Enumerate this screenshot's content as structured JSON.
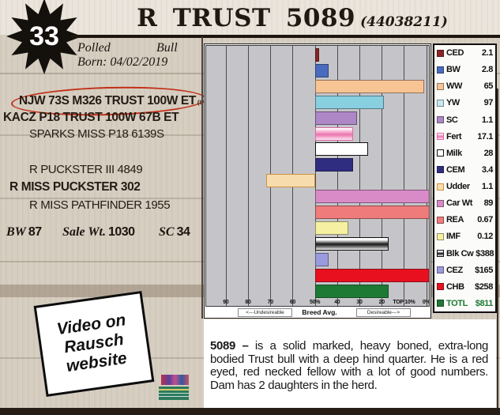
{
  "page": {
    "lot_number": "33",
    "title": "R TRUST 5089",
    "registration": "(44038211)",
    "polled_label": "Polled",
    "sex_label": "Bull",
    "born_label": "Born: 04/02/2019",
    "video_note": "Video on Rausch website",
    "description_lead": "5089 –",
    "description_body": " is a solid marked, heavy boned, extra-long bodied Trust bull with a deep hind quarter. He is a red eyed, red necked fellow with a lot of good numbers. Dam has 2 daughters in the herd."
  },
  "pedigree": {
    "sire_sire": "NJW 73S M326 TRUST 100W ET",
    "sire_sire_tags": "(SOD,CHB)",
    "sire": "KACZ P18 TRUST 100W 67B ET",
    "sire_dam": "SPARKS MISS P18 6139S",
    "dam_sire": "R PUCKSTER III 4849",
    "dam": "R MISS PUCKSTER 302",
    "dam_dam": "R MISS PATHFINDER 1955"
  },
  "stats": {
    "bw_label": "BW",
    "bw_value": "87",
    "sale_wt_label": "Sale Wt.",
    "sale_wt_value": "1030",
    "sc_label": "SC",
    "sc_value": "34"
  },
  "chart_data": {
    "type": "bar",
    "orientation": "horizontal",
    "note": "EPD percentile-rank chart; bars start at Breed Avg. (50%) line, longer to the right = more desirable",
    "x_tick_labels": [
      "90",
      "80",
      "70",
      "60",
      "50%",
      "40",
      "30",
      "20",
      "TOP 10%",
      "0%"
    ],
    "captions": {
      "left": "<---Undesireable",
      "center": "Breed Avg.",
      "right": "Desireable--->"
    },
    "plot_bg": "#c5c5c9",
    "series": [
      {
        "label": "CED",
        "value": "2.1",
        "percentile": 48,
        "color": "#8b2423"
      },
      {
        "label": "BW",
        "value": "2.8",
        "percentile": 44,
        "color": "#4a6bbe"
      },
      {
        "label": "WW",
        "value": "65",
        "percentile": 1,
        "color": "#f8c494"
      },
      {
        "label": "YW",
        "value": "97",
        "percentile": 19,
        "color": "#88cfe0",
        "legend_color": "#c8e8f1"
      },
      {
        "label": "SC",
        "value": "1.1",
        "percentile": 31,
        "color": "#ad87c6"
      },
      {
        "label": "Fert",
        "value": "17.1",
        "percentile": 33,
        "color": "#ee85bb",
        "style": "pink-gradient"
      },
      {
        "label": "Milk",
        "value": "28",
        "percentile": 26,
        "color": "#ffffff",
        "style": "outlined"
      },
      {
        "label": "CEM",
        "value": "3.4",
        "percentile": 33,
        "color": "#2f2d80"
      },
      {
        "label": "Udder",
        "value": "1.1",
        "percentile": 72,
        "color": "#f7ddae",
        "direction": "left"
      },
      {
        "label": "Car Wt",
        "value": "89",
        "percentile": 0,
        "color": "#d98bc8"
      },
      {
        "label": "REA",
        "value": "0.67",
        "percentile": 0,
        "color": "#ef7b7b"
      },
      {
        "label": "IMF",
        "value": "0.12",
        "percentile": 35,
        "color": "#f6f0a2"
      },
      {
        "label": "Blk Cw",
        "value": "$388",
        "percentile": 17,
        "color": "#9a9a9a",
        "style": "gray-tube"
      },
      {
        "label": "CEZ",
        "value": "$165",
        "percentile": 44,
        "color": "#9a9ade"
      },
      {
        "label": "CHB",
        "value": "$258",
        "percentile": 0,
        "color": "#e8101f"
      },
      {
        "label": "TOTL",
        "value": "$811",
        "percentile": 17,
        "color": "#1c7a35",
        "text_color": "#1c7a35"
      }
    ]
  }
}
